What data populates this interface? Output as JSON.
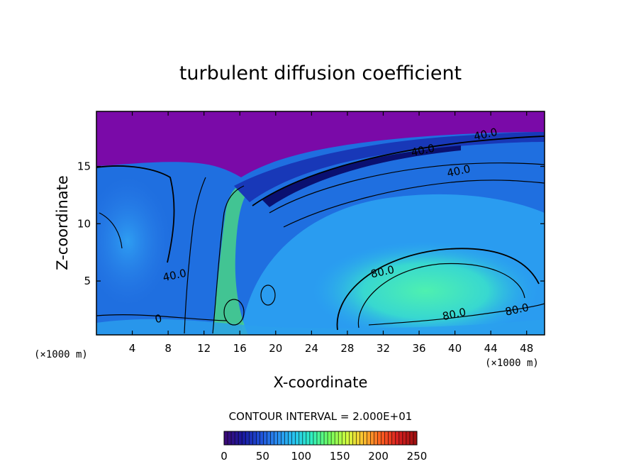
{
  "chart_data": {
    "type": "heatmap",
    "title": "turbulent diffusion coefficient",
    "xlabel": "X-coordinate",
    "ylabel": "Z-coordinate",
    "x_unit": "(×1000 m)",
    "y_unit": "(×1000 m)",
    "xlim": [
      0,
      50
    ],
    "ylim": [
      0.3,
      19.8
    ],
    "x_ticks": [
      4,
      8,
      12,
      16,
      20,
      24,
      28,
      32,
      36,
      40,
      44,
      48
    ],
    "y_ticks": [
      5,
      10,
      15
    ],
    "contour_interval_text": "CONTOUR INTERVAL = 2.000E+01",
    "contour_interval": 20,
    "colorbar": {
      "min": 0,
      "max": 250,
      "ticks": [
        0,
        50,
        100,
        150,
        200,
        250
      ],
      "colors": [
        "#3a0a78",
        "#1a1aa0",
        "#1f4fd8",
        "#2a8ef0",
        "#27c6f0",
        "#30f0c0",
        "#70ff60",
        "#d0ff40",
        "#ffc030",
        "#ff6020",
        "#d82020",
        "#a01010"
      ]
    },
    "contour_labels": [
      {
        "text": "40.0",
        "x": 43.5,
        "z": 17.5
      },
      {
        "text": "40.0",
        "x": 36.5,
        "z": 16.1
      },
      {
        "text": "40.0",
        "x": 40.5,
        "z": 14.3
      },
      {
        "text": "40.0",
        "x": 8.8,
        "z": 5.2
      },
      {
        "text": "80.0",
        "x": 32.0,
        "z": 5.5
      },
      {
        "text": "80.0",
        "x": 40.0,
        "z": 1.8
      },
      {
        "text": "80.0",
        "x": 47.0,
        "z": 2.2
      },
      {
        "text": "0",
        "x": 7.0,
        "z": 1.4
      }
    ]
  }
}
